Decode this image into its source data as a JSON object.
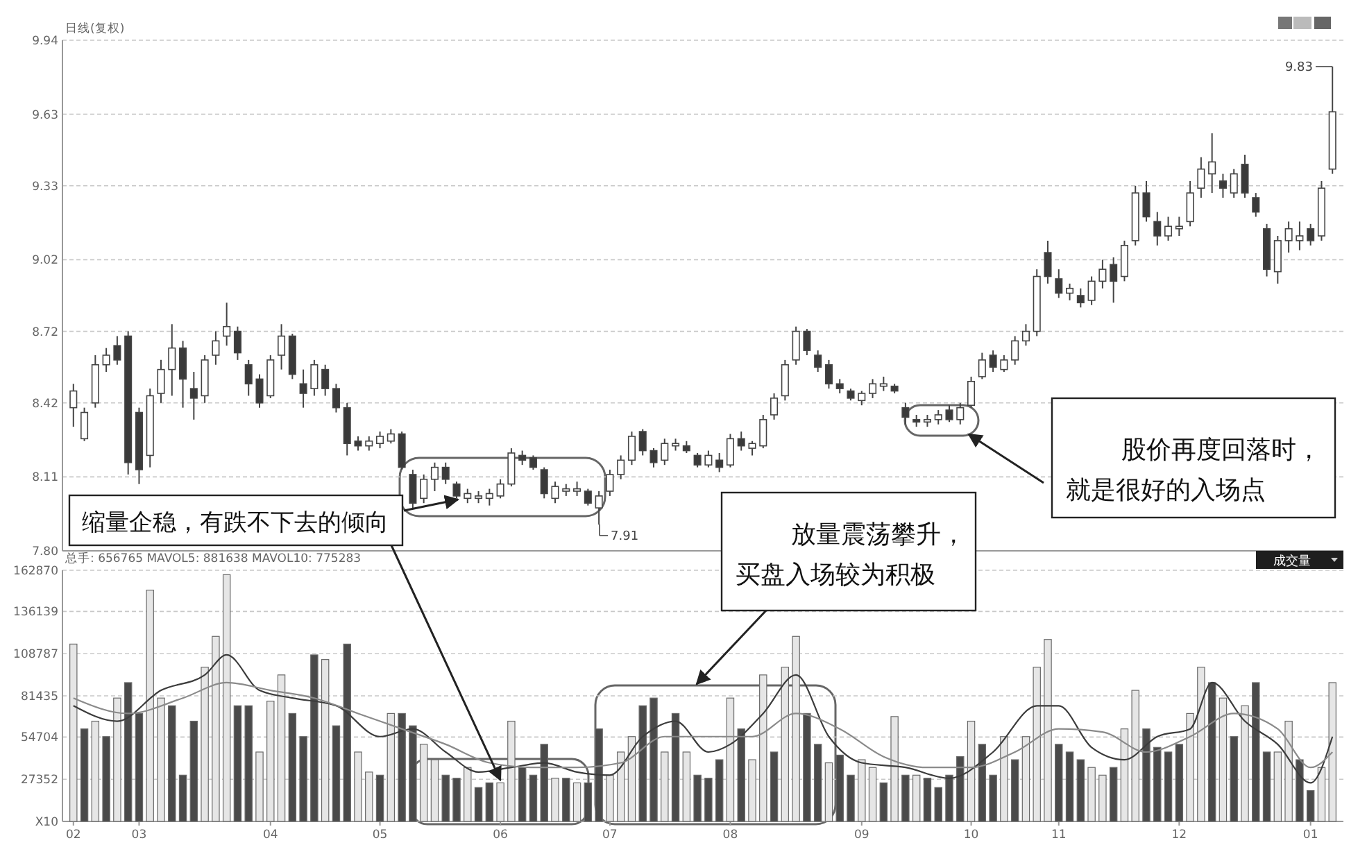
{
  "chart_data": [
    {
      "type": "candlestick",
      "title": "日线(复权)",
      "tick_labels": "y",
      "grid": "y",
      "ylim": [
        7.8,
        9.94
      ],
      "yticks": [
        {
          "value": 9.94,
          "label": "9.94"
        },
        {
          "value": 9.63,
          "label": "9.63"
        },
        {
          "value": 9.33,
          "label": "9.33"
        },
        {
          "value": 9.02,
          "label": "9.02"
        },
        {
          "value": 8.72,
          "label": "8.72"
        },
        {
          "value": 8.42,
          "label": "8.42"
        },
        {
          "value": 8.11,
          "label": "8.11"
        },
        {
          "value": 7.8,
          "label": "7.80"
        }
      ],
      "categories": [
        "02",
        null,
        null,
        null,
        null,
        null,
        "03",
        null,
        null,
        null,
        null,
        null,
        null,
        null,
        null,
        null,
        null,
        null,
        "04",
        null,
        null,
        null,
        null,
        null,
        null,
        null,
        null,
        null,
        "05",
        null,
        null,
        null,
        null,
        null,
        null,
        null,
        null,
        null,
        null,
        "06",
        null,
        null,
        null,
        null,
        null,
        null,
        null,
        null,
        null,
        "07",
        null,
        null,
        null,
        null,
        null,
        null,
        null,
        null,
        null,
        null,
        "08",
        null,
        null,
        null,
        null,
        null,
        null,
        null,
        null,
        null,
        null,
        null,
        "09",
        null,
        null,
        null,
        null,
        null,
        null,
        null,
        null,
        null,
        "10",
        null,
        null,
        null,
        null,
        null,
        null,
        null,
        "11",
        null,
        null,
        null,
        null,
        null,
        null,
        null,
        null,
        null,
        null,
        "12",
        null,
        null,
        null,
        null,
        null,
        null,
        null,
        null,
        null,
        null,
        null,
        "01",
        null,
        null
      ],
      "ohlc": [
        [
          8.4,
          8.5,
          8.32,
          8.47
        ],
        [
          8.27,
          8.4,
          8.26,
          8.38
        ],
        [
          8.42,
          8.62,
          8.4,
          8.58
        ],
        [
          8.58,
          8.65,
          8.55,
          8.62
        ],
        [
          8.66,
          8.7,
          8.58,
          8.6
        ],
        [
          8.7,
          8.72,
          8.12,
          8.17
        ],
        [
          8.38,
          8.4,
          8.08,
          8.14
        ],
        [
          8.2,
          8.48,
          8.15,
          8.45
        ],
        [
          8.46,
          8.6,
          8.42,
          8.56
        ],
        [
          8.56,
          8.75,
          8.45,
          8.65
        ],
        [
          8.65,
          8.68,
          8.4,
          8.52
        ],
        [
          8.48,
          8.55,
          8.35,
          8.44
        ],
        [
          8.45,
          8.62,
          8.42,
          8.6
        ],
        [
          8.62,
          8.72,
          8.58,
          8.68
        ],
        [
          8.7,
          8.84,
          8.66,
          8.74
        ],
        [
          8.72,
          8.74,
          8.6,
          8.63
        ],
        [
          8.58,
          8.6,
          8.45,
          8.5
        ],
        [
          8.52,
          8.54,
          8.4,
          8.42
        ],
        [
          8.45,
          8.62,
          8.44,
          8.6
        ],
        [
          8.62,
          8.75,
          8.56,
          8.7
        ],
        [
          8.7,
          8.71,
          8.52,
          8.54
        ],
        [
          8.5,
          8.56,
          8.4,
          8.46
        ],
        [
          8.48,
          8.6,
          8.45,
          8.58
        ],
        [
          8.56,
          8.58,
          8.45,
          8.48
        ],
        [
          8.48,
          8.5,
          8.38,
          8.4
        ],
        [
          8.4,
          8.42,
          8.2,
          8.25
        ],
        [
          8.26,
          8.28,
          8.22,
          8.24
        ],
        [
          8.24,
          8.28,
          8.22,
          8.26
        ],
        [
          8.25,
          8.3,
          8.23,
          8.28
        ],
        [
          8.26,
          8.31,
          8.25,
          8.29
        ],
        [
          8.29,
          8.3,
          8.14,
          8.15
        ],
        [
          8.12,
          8.14,
          7.98,
          8.0
        ],
        [
          8.02,
          8.12,
          8.0,
          8.1
        ],
        [
          8.1,
          8.17,
          8.05,
          8.15
        ],
        [
          8.15,
          8.17,
          8.08,
          8.1
        ],
        [
          8.08,
          8.09,
          8.02,
          8.03
        ],
        [
          8.02,
          8.06,
          8.0,
          8.04
        ],
        [
          8.02,
          8.05,
          8.0,
          8.03
        ],
        [
          8.02,
          8.06,
          7.99,
          8.04
        ],
        [
          8.03,
          8.1,
          8.02,
          8.08
        ],
        [
          8.08,
          8.23,
          8.07,
          8.21
        ],
        [
          8.2,
          8.22,
          8.16,
          8.18
        ],
        [
          8.19,
          8.2,
          8.14,
          8.15
        ],
        [
          8.14,
          8.15,
          8.02,
          8.04
        ],
        [
          8.02,
          8.09,
          8.0,
          8.07
        ],
        [
          8.05,
          8.08,
          8.03,
          8.06
        ],
        [
          8.05,
          8.09,
          8.03,
          8.06
        ],
        [
          8.05,
          8.06,
          7.99,
          8.0
        ],
        [
          7.98,
          8.05,
          7.91,
          8.03
        ],
        [
          8.05,
          8.14,
          8.03,
          8.12
        ],
        [
          8.12,
          8.2,
          8.1,
          8.18
        ],
        [
          8.18,
          8.3,
          8.16,
          8.28
        ],
        [
          8.3,
          8.31,
          8.2,
          8.22
        ],
        [
          8.22,
          8.23,
          8.15,
          8.17
        ],
        [
          8.18,
          8.27,
          8.16,
          8.25
        ],
        [
          8.24,
          8.27,
          8.22,
          8.25
        ],
        [
          8.24,
          8.26,
          8.21,
          8.22
        ],
        [
          8.2,
          8.21,
          8.15,
          8.16
        ],
        [
          8.16,
          8.22,
          8.15,
          8.2
        ],
        [
          8.18,
          8.21,
          8.13,
          8.15
        ],
        [
          8.16,
          8.29,
          8.15,
          8.27
        ],
        [
          8.27,
          8.3,
          8.22,
          8.24
        ],
        [
          8.23,
          8.26,
          8.2,
          8.25
        ],
        [
          8.24,
          8.37,
          8.23,
          8.35
        ],
        [
          8.37,
          8.46,
          8.35,
          8.44
        ],
        [
          8.45,
          8.6,
          8.43,
          8.58
        ],
        [
          8.6,
          8.74,
          8.58,
          8.72
        ],
        [
          8.72,
          8.73,
          8.62,
          8.64
        ],
        [
          8.62,
          8.64,
          8.55,
          8.57
        ],
        [
          8.58,
          8.6,
          8.48,
          8.5
        ],
        [
          8.5,
          8.52,
          8.46,
          8.48
        ],
        [
          8.47,
          8.48,
          8.43,
          8.44
        ],
        [
          8.43,
          8.47,
          8.41,
          8.46
        ],
        [
          8.46,
          8.52,
          8.44,
          8.5
        ],
        [
          8.49,
          8.53,
          8.47,
          8.5
        ],
        [
          8.49,
          8.5,
          8.46,
          8.47
        ],
        [
          8.4,
          8.42,
          8.33,
          8.36
        ],
        [
          8.35,
          8.37,
          8.32,
          8.34
        ],
        [
          8.34,
          8.37,
          8.32,
          8.35
        ],
        [
          8.35,
          8.39,
          8.33,
          8.37
        ],
        [
          8.39,
          8.41,
          8.34,
          8.35
        ],
        [
          8.35,
          8.42,
          8.33,
          8.4
        ],
        [
          8.41,
          8.53,
          8.4,
          8.51
        ],
        [
          8.53,
          8.63,
          8.52,
          8.6
        ],
        [
          8.62,
          8.64,
          8.55,
          8.57
        ],
        [
          8.56,
          8.62,
          8.55,
          8.6
        ],
        [
          8.6,
          8.7,
          8.58,
          8.68
        ],
        [
          8.68,
          8.75,
          8.66,
          8.72
        ],
        [
          8.72,
          8.98,
          8.7,
          8.95
        ],
        [
          9.05,
          9.1,
          8.92,
          8.95
        ],
        [
          8.94,
          8.98,
          8.86,
          8.88
        ],
        [
          8.88,
          8.92,
          8.85,
          8.9
        ],
        [
          8.87,
          8.9,
          8.82,
          8.84
        ],
        [
          8.85,
          8.95,
          8.83,
          8.93
        ],
        [
          8.93,
          9.02,
          8.9,
          8.98
        ],
        [
          9.0,
          9.03,
          8.84,
          8.93
        ],
        [
          8.95,
          9.1,
          8.93,
          9.08
        ],
        [
          9.1,
          9.33,
          9.08,
          9.3
        ],
        [
          9.3,
          9.35,
          9.18,
          9.2
        ],
        [
          9.18,
          9.22,
          9.08,
          9.12
        ],
        [
          9.12,
          9.2,
          9.1,
          9.16
        ],
        [
          9.15,
          9.2,
          9.12,
          9.16
        ],
        [
          9.18,
          9.35,
          9.16,
          9.3
        ],
        [
          9.32,
          9.45,
          9.28,
          9.4
        ],
        [
          9.38,
          9.55,
          9.3,
          9.43
        ],
        [
          9.35,
          9.38,
          9.28,
          9.32
        ],
        [
          9.3,
          9.4,
          9.28,
          9.38
        ],
        [
          9.42,
          9.46,
          9.28,
          9.3
        ],
        [
          9.28,
          9.3,
          9.2,
          9.22
        ],
        [
          9.15,
          9.17,
          8.95,
          8.98
        ],
        [
          8.97,
          9.12,
          8.92,
          9.1
        ],
        [
          9.1,
          9.18,
          9.05,
          9.15
        ],
        [
          9.1,
          9.18,
          9.06,
          9.12
        ],
        [
          9.15,
          9.17,
          9.08,
          9.1
        ],
        [
          9.12,
          9.35,
          9.1,
          9.32
        ],
        [
          9.4,
          9.83,
          9.38,
          9.64
        ]
      ],
      "annotations": [
        "7.91",
        "9.83",
        "股价再度回落时，就是很好的入场点"
      ]
    },
    {
      "type": "bar",
      "title": "总手: 656765 MAVOL5: 881638 MAVOL10: 775283",
      "grid": "y",
      "ylim": [
        0,
        162870
      ],
      "yticks": [
        {
          "value": 0,
          "label": "X10"
        },
        27352,
        54704,
        81435,
        108787,
        136139,
        162870
      ],
      "categories": [
        "02",
        null,
        null,
        null,
        null,
        null,
        "03",
        null,
        null,
        null,
        null,
        null,
        null,
        null,
        null,
        null,
        null,
        null,
        "04",
        null,
        null,
        null,
        null,
        null,
        null,
        null,
        null,
        null,
        "05",
        null,
        null,
        null,
        null,
        null,
        null,
        null,
        null,
        null,
        null,
        "06",
        null,
        null,
        null,
        null,
        null,
        null,
        null,
        null,
        null,
        "07",
        null,
        null,
        null,
        null,
        null,
        null,
        null,
        null,
        null,
        null,
        "08",
        null,
        null,
        null,
        null,
        null,
        null,
        null,
        null,
        null,
        null,
        null,
        "09",
        null,
        null,
        null,
        null,
        null,
        null,
        null,
        null,
        null,
        "10",
        null,
        null,
        null,
        null,
        null,
        null,
        null,
        "11",
        null,
        null,
        null,
        null,
        null,
        null,
        null,
        null,
        null,
        null,
        "12",
        null,
        null,
        null,
        null,
        null,
        null,
        null,
        null,
        null,
        null,
        null,
        "01",
        null,
        null
      ],
      "series": [
        {
          "values": [
            115000,
            60000,
            65000,
            55000,
            80000,
            90000,
            70000,
            150000,
            80000,
            75000,
            30000,
            65000,
            100000,
            120000,
            160000,
            75000,
            75000,
            45000,
            78000,
            95000,
            70000,
            55000,
            108000,
            105000,
            62000,
            115000,
            45000,
            32000,
            30000,
            70000,
            70000,
            62000,
            50000,
            40000,
            30000,
            28000,
            35000,
            22000,
            25000,
            25000,
            65000,
            35000,
            30000,
            50000,
            28000,
            28000,
            25000,
            25000,
            60000,
            30000,
            45000,
            55000,
            75000,
            80000,
            45000,
            70000,
            45000,
            30000,
            28000,
            40000,
            80000,
            60000,
            40000,
            95000,
            45000,
            100000,
            120000,
            70000,
            50000,
            38000,
            43000,
            30000,
            40000,
            35000,
            25000,
            68000,
            30000,
            30000,
            28000,
            22000,
            30000,
            42000,
            65000,
            50000,
            30000,
            55000,
            40000,
            55000,
            100000,
            118000,
            50000,
            45000,
            40000,
            35000,
            30000,
            35000,
            60000,
            85000,
            60000,
            48000,
            45000,
            50000,
            70000,
            100000,
            90000,
            80000,
            55000,
            75000,
            90000,
            45000,
            45000,
            65000,
            40000,
            20000,
            35000,
            90000
          ],
          "colors": [
            "#e6e6e6",
            "#4a4a4a",
            "#e6e6e6",
            "#4a4a4a",
            "#e6e6e6",
            "#4a4a4a",
            "#4a4a4a",
            "#e6e6e6",
            "#e6e6e6",
            "#4a4a4a",
            "#4a4a4a",
            "#4a4a4a",
            "#e6e6e6",
            "#e6e6e6",
            "#e6e6e6",
            "#4a4a4a",
            "#4a4a4a",
            "#e6e6e6",
            "#e6e6e6",
            "#e6e6e6",
            "#4a4a4a",
            "#4a4a4a",
            "#4a4a4a",
            "#e6e6e6",
            "#4a4a4a",
            "#4a4a4a",
            "#e6e6e6",
            "#e6e6e6",
            "#4a4a4a",
            "#e6e6e6",
            "#4a4a4a",
            "#4a4a4a",
            "#e6e6e6",
            "#e6e6e6",
            "#4a4a4a",
            "#4a4a4a",
            "#e6e6e6",
            "#4a4a4a",
            "#4a4a4a",
            "#e6e6e6",
            "#e6e6e6",
            "#4a4a4a",
            "#4a4a4a",
            "#4a4a4a",
            "#e6e6e6",
            "#4a4a4a",
            "#e6e6e6",
            "#4a4a4a",
            "#4a4a4a",
            "#e6e6e6",
            "#e6e6e6",
            "#e6e6e6",
            "#4a4a4a",
            "#4a4a4a",
            "#e6e6e6",
            "#4a4a4a",
            "#e6e6e6",
            "#4a4a4a",
            "#4a4a4a",
            "#4a4a4a",
            "#e6e6e6",
            "#4a4a4a",
            "#e6e6e6",
            "#e6e6e6",
            "#4a4a4a",
            "#e6e6e6",
            "#e6e6e6",
            "#4a4a4a",
            "#4a4a4a",
            "#e6e6e6",
            "#4a4a4a",
            "#4a4a4a",
            "#e6e6e6",
            "#e6e6e6",
            "#4a4a4a",
            "#e6e6e6",
            "#4a4a4a",
            "#e6e6e6",
            "#4a4a4a",
            "#4a4a4a",
            "#4a4a4a",
            "#4a4a4a",
            "#e6e6e6",
            "#4a4a4a",
            "#4a4a4a",
            "#e6e6e6",
            "#4a4a4a",
            "#e6e6e6",
            "#e6e6e6",
            "#e6e6e6",
            "#4a4a4a",
            "#4a4a4a",
            "#4a4a4a",
            "#e6e6e6",
            "#e6e6e6",
            "#4a4a4a",
            "#e6e6e6",
            "#e6e6e6",
            "#4a4a4a",
            "#4a4a4a",
            "#4a4a4a",
            "#4a4a4a",
            "#e6e6e6",
            "#e6e6e6",
            "#4a4a4a",
            "#e6e6e6",
            "#4a4a4a",
            "#e6e6e6",
            "#4a4a4a",
            "#4a4a4a",
            "#e6e6e6",
            "#e6e6e6",
            "#4a4a4a",
            "#4a4a4a",
            "#e6e6e6",
            "#e6e6e6"
          ]
        },
        {
          "type": "line",
          "color": "#3c3c3c",
          "values": [
            75000,
            null,
            null,
            null,
            65000,
            null,
            null,
            null,
            85000,
            null,
            null,
            null,
            95000,
            null,
            108000,
            null,
            null,
            85000,
            null,
            null,
            80000,
            null,
            null,
            null,
            75000,
            null,
            null,
            null,
            55000,
            null,
            null,
            60000,
            null,
            null,
            45000,
            null,
            null,
            32000,
            null,
            null,
            35000,
            null,
            null,
            38000,
            null,
            null,
            32000,
            null,
            null,
            30000,
            null,
            null,
            55000,
            null,
            null,
            65000,
            null,
            null,
            45000,
            null,
            50000,
            null,
            null,
            70000,
            null,
            null,
            95000,
            null,
            null,
            55000,
            null,
            null,
            38000,
            null,
            null,
            null,
            35000,
            null,
            null,
            null,
            28000,
            null,
            null,
            null,
            45000,
            null,
            null,
            null,
            75000,
            null,
            75000,
            null,
            null,
            48000,
            null,
            null,
            40000,
            null,
            null,
            55000,
            null,
            null,
            60000,
            null,
            90000,
            null,
            null,
            65000,
            null,
            null,
            50000,
            null,
            null,
            25000,
            null,
            55000
          ]
        },
        {
          "type": "line",
          "color": "#8a8a8a",
          "values": [
            80000,
            null,
            null,
            null,
            null,
            70000,
            null,
            null,
            null,
            null,
            80000,
            null,
            null,
            null,
            90000,
            null,
            null,
            null,
            85000,
            null,
            null,
            null,
            80000,
            null,
            null,
            null,
            70000,
            null,
            null,
            null,
            60000,
            null,
            null,
            null,
            50000,
            null,
            null,
            null,
            38000,
            null,
            null,
            null,
            35000,
            null,
            null,
            null,
            35000,
            null,
            null,
            null,
            38000,
            null,
            null,
            null,
            55000,
            null,
            null,
            null,
            55000,
            null,
            null,
            null,
            55000,
            null,
            null,
            null,
            70000,
            null,
            null,
            null,
            60000,
            null,
            null,
            null,
            42000,
            null,
            null,
            null,
            35000,
            null,
            null,
            null,
            35000,
            null,
            null,
            null,
            45000,
            null,
            null,
            null,
            60000,
            null,
            null,
            null,
            58000,
            null,
            null,
            null,
            45000,
            null,
            null,
            null,
            55000,
            null,
            null,
            null,
            70000,
            null,
            null,
            null,
            60000,
            null,
            null,
            35000,
            null,
            45000
          ]
        }
      ],
      "annotations": [
        "成交量",
        {
          "text": "缩量企稳，有跌不下去的倾向",
          "x": "06",
          "y": 25000
        },
        "放量震荡攀升，买盘入场较为积极"
      ]
    }
  ]
}
